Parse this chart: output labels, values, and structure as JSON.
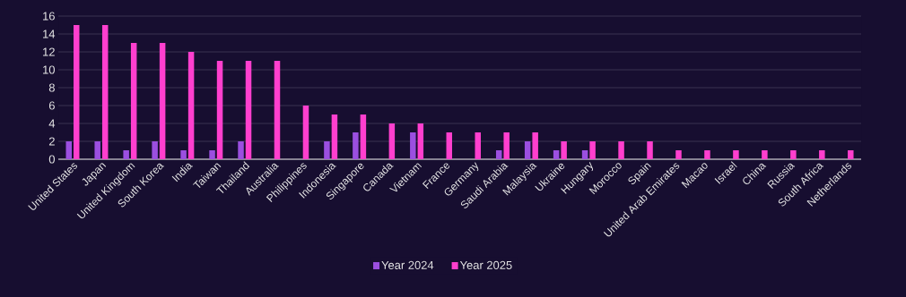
{
  "chart_data": {
    "type": "bar",
    "categories": [
      "United States",
      "Japan",
      "United Kingdom",
      "South Korea",
      "India",
      "Taiwan",
      "Thailand",
      "Australia",
      "Philippines",
      "Indonesia",
      "Singapore",
      "Canada",
      "Vietnam",
      "France",
      "Germany",
      "Saudi Arabia",
      "Malaysia",
      "Ukraine",
      "Hungary",
      "Morocco",
      "Spain",
      "United Arab Emirates",
      "Macao",
      "Israel",
      "China",
      "Russia",
      "South Africa",
      "Netherlands"
    ],
    "series": [
      {
        "name": "Year 2024",
        "color": "#9b4fe0",
        "values": [
          2,
          2,
          1,
          2,
          1,
          1,
          2,
          0,
          0,
          2,
          3,
          0,
          3,
          0,
          0,
          1,
          2,
          1,
          1,
          0,
          0,
          0,
          0,
          0,
          0,
          0,
          0,
          0
        ]
      },
      {
        "name": "Year 2025",
        "color": "#ff3fce",
        "values": [
          15,
          15,
          13,
          13,
          12,
          11,
          11,
          11,
          6,
          5,
          5,
          4,
          4,
          3,
          3,
          3,
          3,
          2,
          2,
          2,
          2,
          1,
          1,
          1,
          1,
          1,
          1,
          1
        ]
      }
    ],
    "ylim": [
      0,
      16
    ],
    "yticks": [
      0,
      2,
      4,
      6,
      8,
      10,
      12,
      14,
      16
    ],
    "grid": "y",
    "legend": "bottom"
  }
}
